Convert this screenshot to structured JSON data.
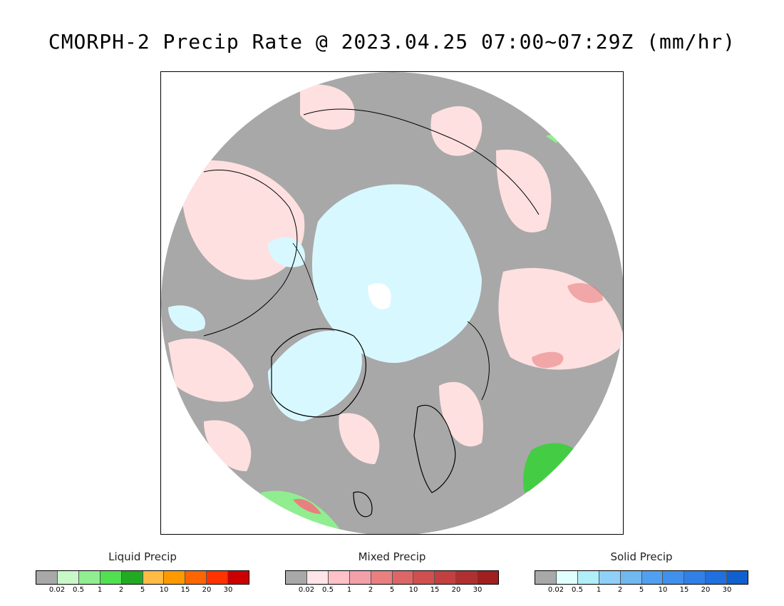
{
  "title": "CMORPH-2 Precip Rate @ 2023.04.25 07:00~07:29Z (mm/hr)",
  "map": {
    "projection": "north-polar-stereographic",
    "colors": {
      "no_precip": "#a8a8a8",
      "ocean_bg": "#ffffff",
      "mixed_light": "#ffe0e0",
      "solid_light": "#d8f8ff",
      "solid_white": "#ffffff",
      "liquid_green": "#44cc44",
      "liquid_dark_green": "#22aa22",
      "mixed_medium": "#e88080",
      "coastline": "#000000"
    }
  },
  "legends": [
    {
      "title": "Liquid Precip",
      "colors": [
        "#a8a8a8",
        "#c8f8c8",
        "#90ee90",
        "#50e050",
        "#22aa22",
        "#ffbb44",
        "#ff9900",
        "#ff6600",
        "#ff3300",
        "#cc0000"
      ],
      "ticks": [
        "0.02",
        "0.5",
        "1",
        "2",
        "5",
        "10",
        "15",
        "20",
        "30"
      ]
    },
    {
      "title": "Mixed Precip",
      "colors": [
        "#a8a8a8",
        "#ffe4e8",
        "#ffc0c8",
        "#f4a0a8",
        "#e88080",
        "#dd6666",
        "#d05050",
        "#c44040",
        "#b03030",
        "#a02020"
      ],
      "ticks": [
        "0.02",
        "0.5",
        "1",
        "2",
        "5",
        "10",
        "15",
        "20",
        "30"
      ]
    },
    {
      "title": "Solid Precip",
      "colors": [
        "#a8a8a8",
        "#e0ffff",
        "#b0eef8",
        "#90d0f8",
        "#70b8f0",
        "#50a0f0",
        "#4090ee",
        "#3080e8",
        "#2070e0",
        "#1060d0"
      ],
      "ticks": [
        "0.02",
        "0.5",
        "1",
        "2",
        "5",
        "10",
        "15",
        "20",
        "30"
      ]
    }
  ]
}
